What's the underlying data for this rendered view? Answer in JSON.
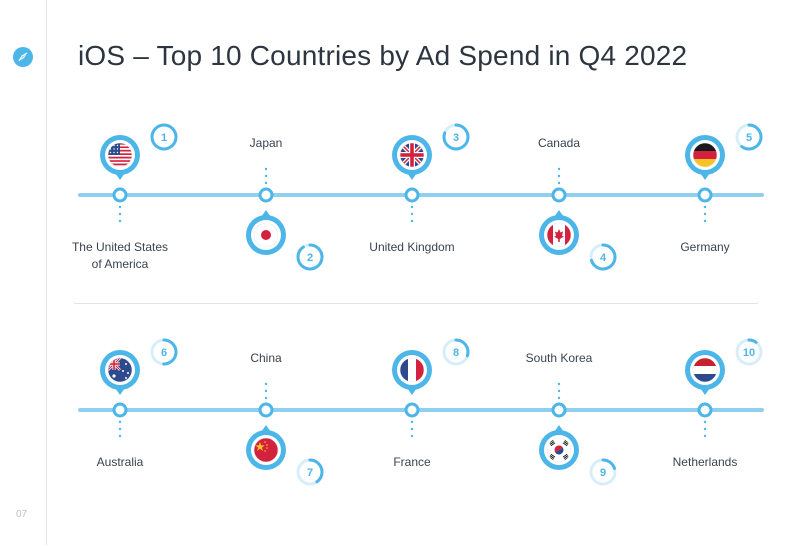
{
  "title": "iOS – Top 10 Countries by Ad Spend in Q4 2022",
  "page_number": "07",
  "logo": "compass-icon",
  "accent_color": "#4db6e8",
  "countries": [
    {
      "rank": "1",
      "name": "The United States",
      "name2": "of America",
      "flag": "us-flag-icon",
      "progress": 1.0
    },
    {
      "rank": "2",
      "name": "Japan",
      "name2": "",
      "flag": "japan-flag-icon",
      "progress": 0.9
    },
    {
      "rank": "3",
      "name": "United Kingdom",
      "name2": "",
      "flag": "uk-flag-icon",
      "progress": 0.8
    },
    {
      "rank": "4",
      "name": "Canada",
      "name2": "",
      "flag": "canada-flag-icon",
      "progress": 0.7
    },
    {
      "rank": "5",
      "name": "Germany",
      "name2": "",
      "flag": "germany-flag-icon",
      "progress": 0.6
    },
    {
      "rank": "6",
      "name": "Australia",
      "name2": "",
      "flag": "australia-flag-icon",
      "progress": 0.5
    },
    {
      "rank": "7",
      "name": "China",
      "name2": "",
      "flag": "china-flag-icon",
      "progress": 0.4
    },
    {
      "rank": "8",
      "name": "France",
      "name2": "",
      "flag": "france-flag-icon",
      "progress": 0.3
    },
    {
      "rank": "9",
      "name": "South Korea",
      "name2": "",
      "flag": "south-korea-flag-icon",
      "progress": 0.2
    },
    {
      "rank": "10",
      "name": "Netherlands",
      "name2": "",
      "flag": "netherlands-flag-icon",
      "progress": 0.1
    }
  ]
}
